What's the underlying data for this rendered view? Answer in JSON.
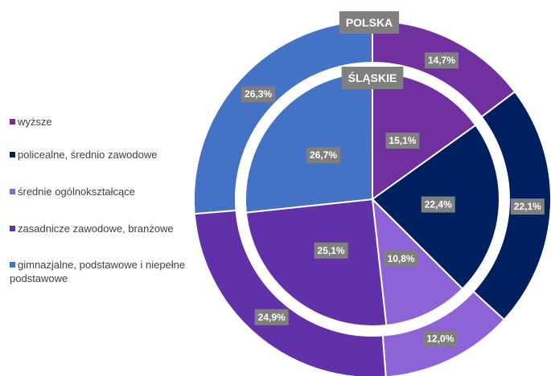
{
  "chart_data": {
    "type": "pie",
    "categories": [
      "wyższe",
      "policealne, średnio zawodowe",
      "średnie ogólnokształcące",
      "zasadnicze zawodowe, branżowe",
      "gimnazjalne, podstawowe i niepełne podstawowe"
    ],
    "colors": [
      "#7030a0",
      "#002060",
      "#8e63d8",
      "#6230a8",
      "#4472c4"
    ],
    "series": [
      {
        "name": "POLSKA",
        "values": [
          14.7,
          22.1,
          12.0,
          24.9,
          26.3
        ],
        "value_labels": [
          "14,7%",
          "22,1%",
          "12,0%",
          "24,9%",
          "26,3%"
        ]
      },
      {
        "name": "ŚLĄSKIE",
        "values": [
          15.1,
          22.4,
          10.8,
          25.1,
          26.7
        ],
        "value_labels": [
          "15,1%",
          "22,4%",
          "10,8%",
          "25,1%",
          "26,7%"
        ]
      }
    ]
  }
}
